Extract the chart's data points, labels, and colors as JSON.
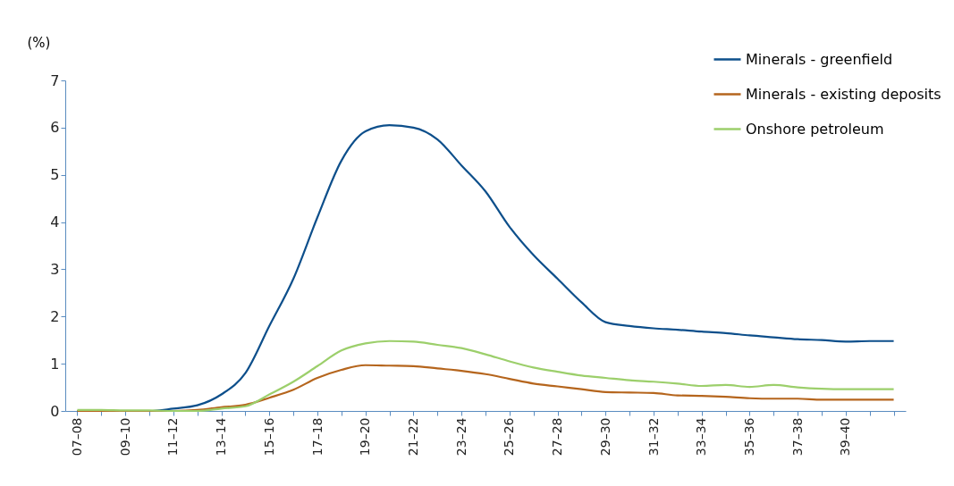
{
  "chart_data": {
    "type": "line",
    "ylabel": "(%)",
    "categories": [
      "07–08",
      null,
      "09–10",
      null,
      "11–12",
      null,
      "13–14",
      null,
      "15–16",
      null,
      "17–18",
      null,
      "19–20",
      null,
      "21–22",
      null,
      "23–24",
      null,
      "25–26",
      null,
      "27–28",
      null,
      "29–30",
      null,
      "31–32",
      null,
      "33–34",
      null,
      "35–36",
      null,
      "37–38",
      null,
      "39–40",
      null,
      null
    ],
    "series": [
      {
        "name": "Minerals - greenfield",
        "color": "#0d4f8b",
        "values": [
          0,
          0,
          0,
          0,
          0.05,
          0.12,
          0.35,
          0.8,
          1.8,
          2.8,
          4.1,
          5.3,
          5.92,
          6.05,
          6.0,
          5.75,
          5.2,
          4.65,
          3.9,
          3.3,
          2.8,
          2.3,
          1.88,
          1.8,
          1.75,
          1.72,
          1.68,
          1.65,
          1.6,
          1.56,
          1.52,
          1.5,
          1.47,
          1.48,
          1.48
        ]
      },
      {
        "name": "Minerals - existing deposits",
        "color": "#b5651d",
        "values": [
          0,
          0,
          0,
          0,
          0,
          0.02,
          0.08,
          0.13,
          0.28,
          0.45,
          0.7,
          0.87,
          0.97,
          0.96,
          0.95,
          0.9,
          0.85,
          0.78,
          0.68,
          0.58,
          0.52,
          0.46,
          0.4,
          0.39,
          0.38,
          0.33,
          0.32,
          0.3,
          0.27,
          0.26,
          0.26,
          0.24,
          0.24,
          0.24,
          0.24
        ]
      },
      {
        "name": "Onshore petroleum",
        "color": "#9ccf6b",
        "values": [
          0.02,
          0.02,
          0.01,
          0.01,
          0,
          0,
          0.05,
          0.1,
          0.35,
          0.62,
          0.95,
          1.28,
          1.43,
          1.48,
          1.47,
          1.4,
          1.33,
          1.2,
          1.05,
          0.92,
          0.83,
          0.75,
          0.7,
          0.65,
          0.62,
          0.58,
          0.53,
          0.55,
          0.51,
          0.55,
          0.5,
          0.47,
          0.46,
          0.46,
          0.46
        ]
      }
    ],
    "ylim": [
      0,
      7
    ],
    "yticks": [
      0,
      1,
      2,
      3,
      4,
      5,
      6,
      7
    ],
    "grid": false,
    "legend": "top right",
    "line_style": "solid",
    "marker": "none"
  }
}
